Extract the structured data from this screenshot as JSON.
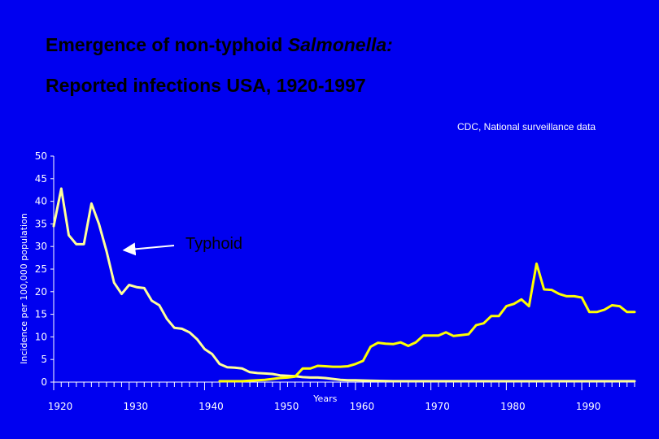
{
  "slide": {
    "title_prefix": "Emergence of non-typhoid ",
    "title_italic": "Salmonella:",
    "subtitle": "Reported infections  USA, 1920-1997",
    "source": "CDC, National surveillance data"
  },
  "colors": {
    "background": "#0000f0",
    "typhoid": "#ffff99",
    "salmonella": "#ffff00",
    "axis": "#ffffff"
  },
  "chart_data": {
    "type": "line",
    "ylabel": "Incidence per 100,000 population",
    "xlabel": "Years",
    "xlim": [
      1920,
      1997
    ],
    "ylim": [
      0,
      50
    ],
    "y_ticks": [
      0,
      5,
      10,
      15,
      20,
      25,
      30,
      35,
      40,
      45,
      50
    ],
    "x_ticks": [
      1920,
      1930,
      1940,
      1950,
      1960,
      1970,
      1980,
      1990
    ],
    "annotation": {
      "text": "Typhoid",
      "arrow_to": {
        "x": 1928.9,
        "y": 29.2
      }
    },
    "series": [
      {
        "name": "Typhoid",
        "x": [
          1920,
          1921,
          1922,
          1923,
          1924,
          1925,
          1926,
          1927,
          1928,
          1929,
          1930,
          1931,
          1932,
          1933,
          1934,
          1935,
          1936,
          1937,
          1938,
          1939,
          1940,
          1941,
          1942,
          1943,
          1944,
          1945,
          1946,
          1947,
          1948,
          1949,
          1950,
          1951,
          1952,
          1953,
          1954,
          1955,
          1956,
          1957,
          1958,
          1959,
          1960,
          1962,
          1965,
          1970,
          1975,
          1980,
          1985,
          1990,
          1997
        ],
        "y": [
          34.5,
          42.8,
          32.5,
          30.5,
          30.5,
          39.5,
          35.0,
          29.0,
          22.0,
          19.5,
          21.5,
          21.0,
          20.8,
          18.0,
          17.0,
          14.0,
          12.0,
          11.8,
          11.0,
          9.5,
          7.3,
          6.2,
          4.0,
          3.3,
          3.2,
          3.0,
          2.2,
          2.0,
          1.9,
          1.8,
          1.5,
          1.4,
          1.3,
          1.1,
          1.0,
          1.0,
          0.9,
          0.7,
          0.5,
          0.4,
          0.4,
          0.3,
          0.2,
          0.2,
          0.2,
          0.2,
          0.2,
          0.2,
          0.2
        ]
      },
      {
        "name": "Salmonella",
        "x": [
          1942,
          1943,
          1944,
          1945,
          1946,
          1947,
          1948,
          1949,
          1950,
          1951,
          1952,
          1953,
          1954,
          1955,
          1956,
          1957,
          1958,
          1959,
          1960,
          1961,
          1962,
          1963,
          1964,
          1965,
          1966,
          1967,
          1968,
          1969,
          1970,
          1971,
          1972,
          1973,
          1974,
          1975,
          1976,
          1977,
          1978,
          1979,
          1980,
          1981,
          1982,
          1983,
          1984,
          1985,
          1986,
          1987,
          1988,
          1989,
          1990,
          1991,
          1992,
          1993,
          1994,
          1995,
          1996,
          1997
        ],
        "y": [
          0.2,
          0.2,
          0.2,
          0.2,
          0.3,
          0.4,
          0.5,
          0.7,
          0.9,
          1.0,
          1.2,
          3.0,
          3.0,
          3.6,
          3.5,
          3.4,
          3.4,
          3.5,
          4.0,
          4.7,
          7.8,
          8.7,
          8.5,
          8.4,
          8.8,
          8.0,
          8.8,
          10.3,
          10.3,
          10.3,
          11.0,
          10.2,
          10.4,
          10.6,
          12.6,
          13.0,
          14.6,
          14.6,
          16.8,
          17.3,
          18.3,
          16.8,
          26.2,
          20.5,
          20.4,
          19.5,
          19.0,
          19.0,
          18.7,
          15.5,
          15.5,
          16.0,
          17.0,
          16.8,
          15.5,
          15.5
        ]
      }
    ]
  }
}
